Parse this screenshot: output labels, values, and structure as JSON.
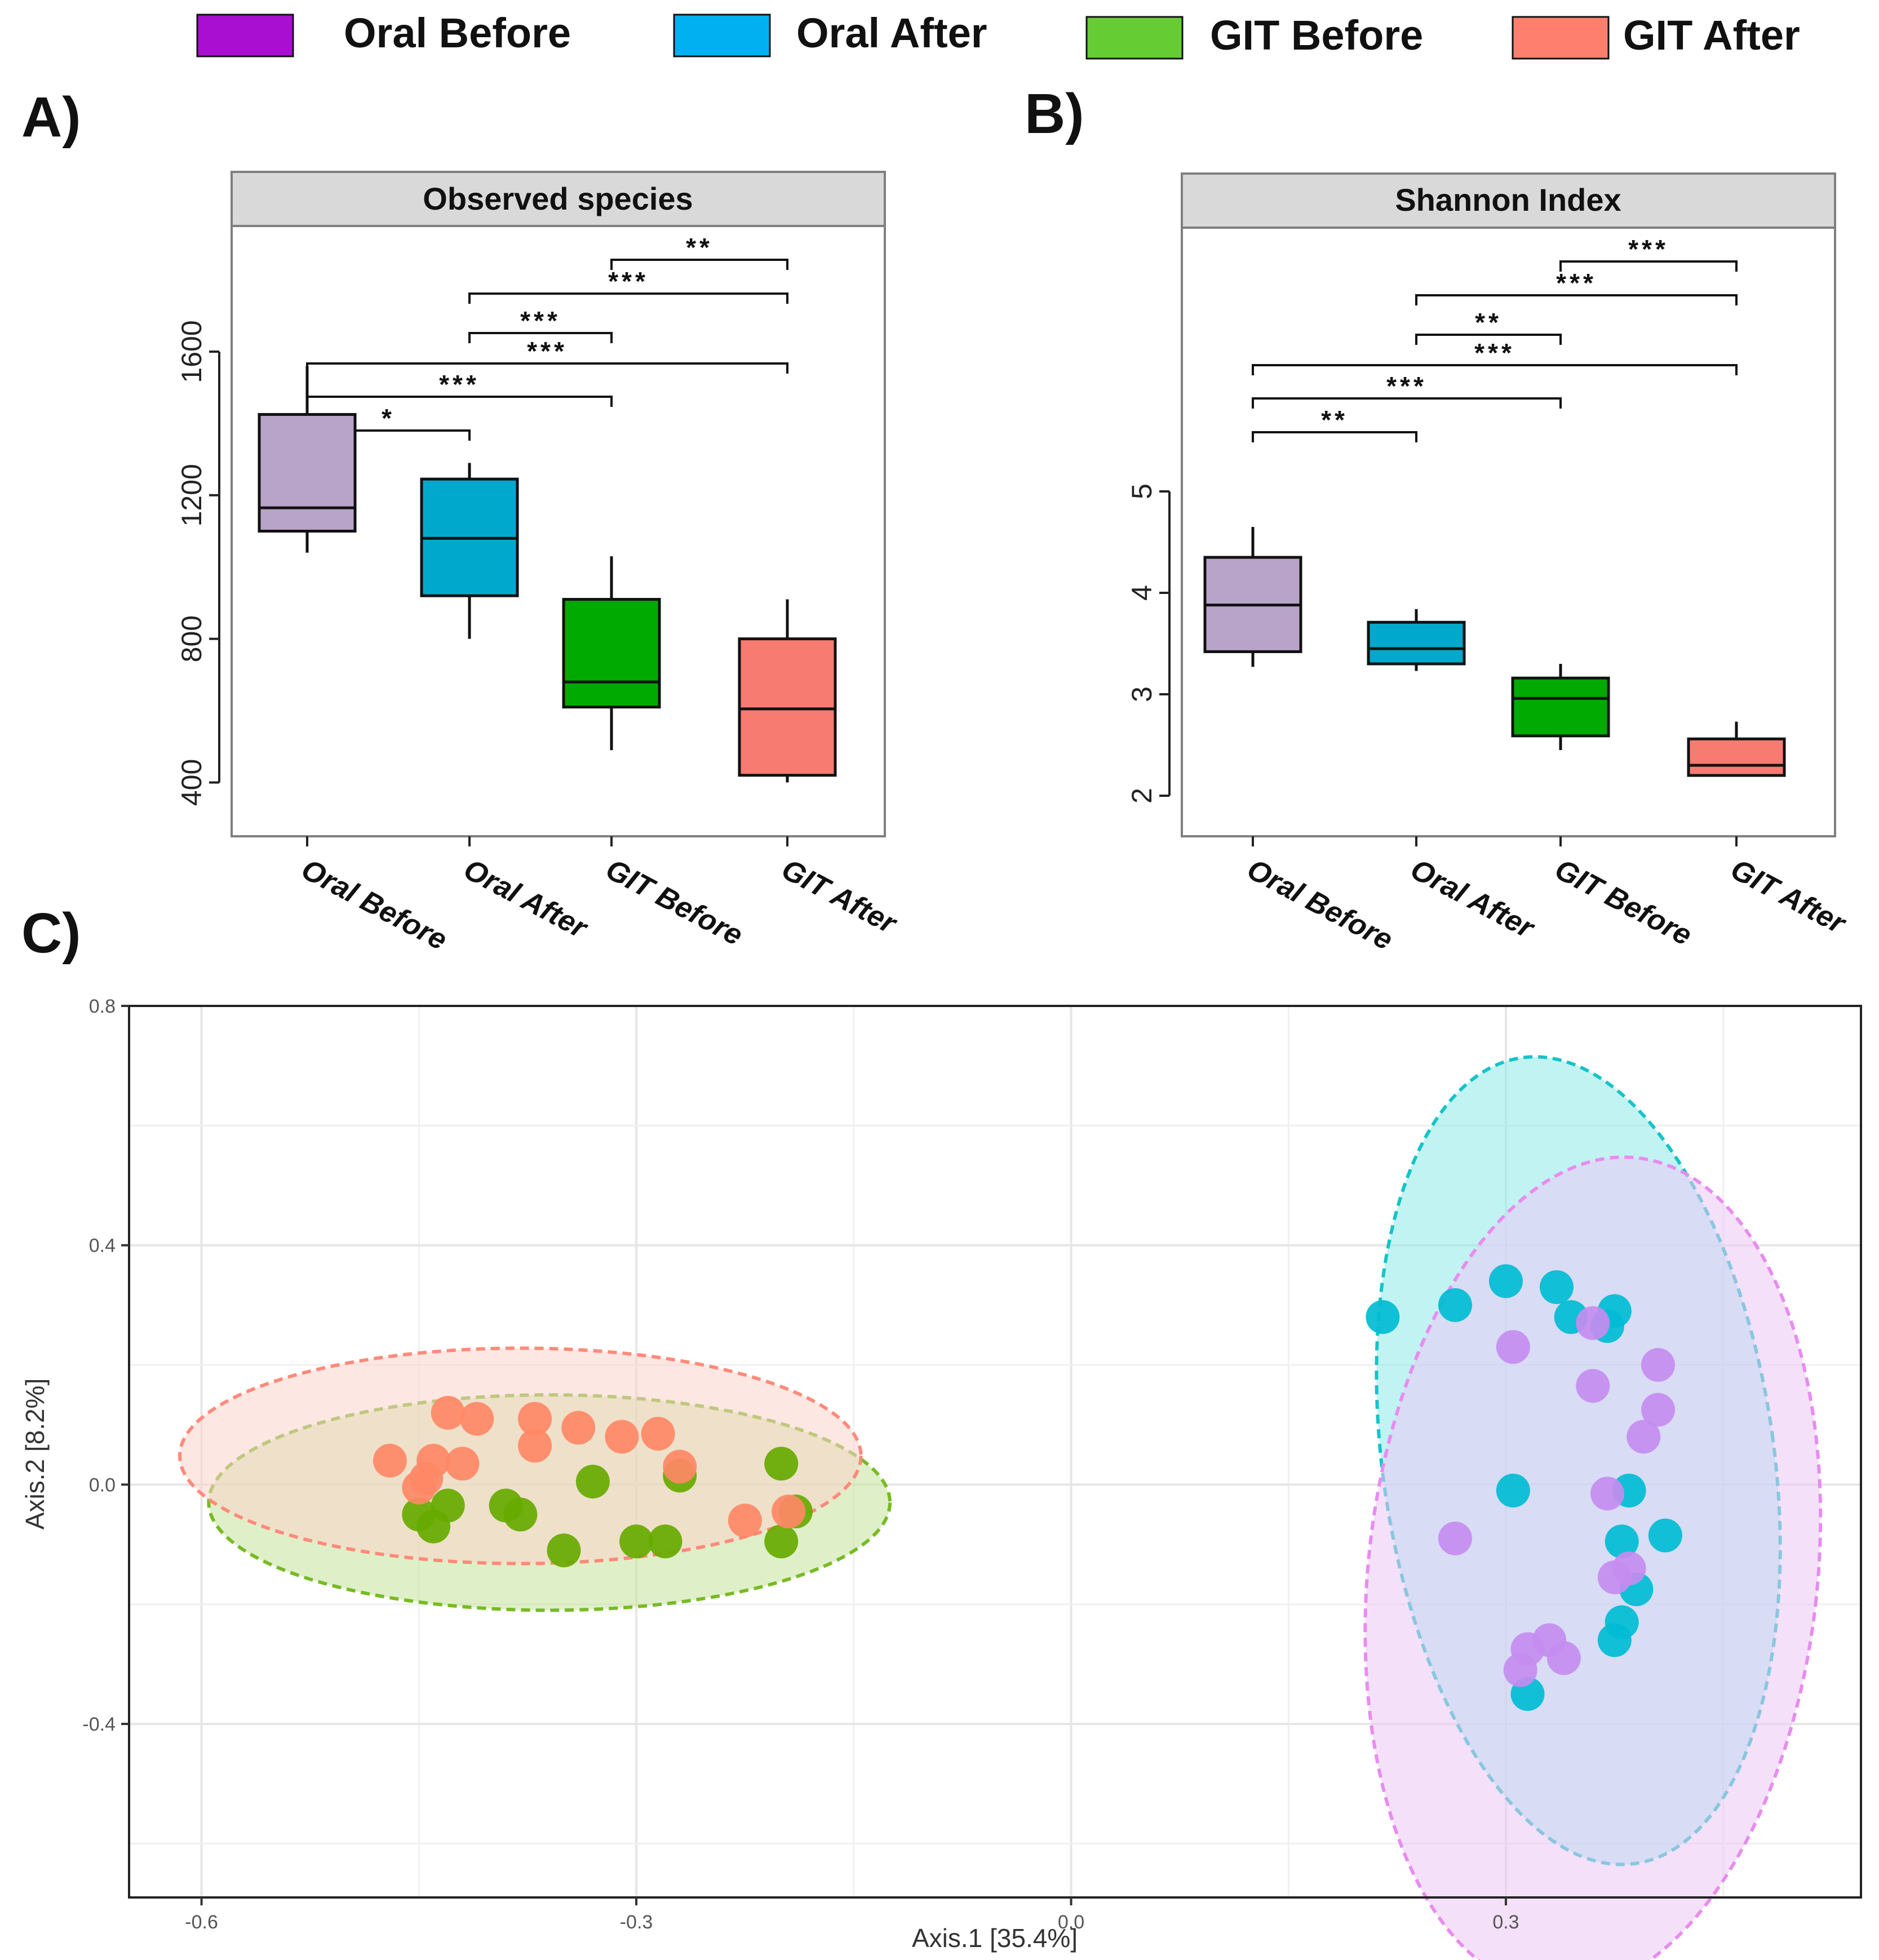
{
  "legend": {
    "entries": [
      {
        "label": "Oral Before",
        "color": "#a90fd0"
      },
      {
        "label": "Oral After",
        "color": "#00b0f0"
      },
      {
        "label": "GIT Before",
        "color": "#66cc33"
      },
      {
        "label": "GIT After",
        "color": "#ff7f6e"
      }
    ]
  },
  "chart_data": [
    {
      "panel": "A)",
      "type": "box",
      "title": "Observed species",
      "categories": [
        "Oral Before",
        "Oral After",
        "GIT Before",
        "GIT After"
      ],
      "yticks": [
        400,
        800,
        1200,
        1600
      ],
      "ylim": [
        250,
        1950
      ],
      "boxes": [
        {
          "min": 1040,
          "q1": 1100,
          "median": 1165,
          "q3": 1425,
          "max": 1560,
          "fill": "#b8a3c9"
        },
        {
          "min": 800,
          "q1": 920,
          "median": 1080,
          "q3": 1245,
          "max": 1290,
          "fill": "#00a9cc"
        },
        {
          "min": 490,
          "q1": 610,
          "median": 680,
          "q3": 910,
          "max": 1030,
          "fill": "#00aa00"
        },
        {
          "min": 400,
          "q1": 420,
          "median": 605,
          "q3": 800,
          "max": 910,
          "fill": "#f87b72"
        }
      ],
      "brackets": [
        {
          "from": 3,
          "to": 4,
          "label": "**"
        },
        {
          "from": 2,
          "to": 4,
          "label": "***"
        },
        {
          "from": 2,
          "to": 3,
          "label": "***"
        },
        {
          "from": 1,
          "to": 4,
          "label": "***"
        },
        {
          "from": 1,
          "to": 3,
          "label": "***"
        },
        {
          "from": 1,
          "to": 2,
          "label": "*"
        }
      ]
    },
    {
      "panel": "B)",
      "type": "box",
      "title": "Shannon Index",
      "categories": [
        "Oral Before",
        "Oral After",
        "GIT Before",
        "GIT After"
      ],
      "yticks": [
        2,
        3,
        4,
        5
      ],
      "ylim": [
        1.6,
        7.6
      ],
      "boxes": [
        {
          "min": 3.27,
          "q1": 3.42,
          "median": 3.88,
          "q3": 4.35,
          "max": 4.65,
          "fill": "#b8a3c9"
        },
        {
          "min": 3.23,
          "q1": 3.3,
          "median": 3.45,
          "q3": 3.71,
          "max": 3.84,
          "fill": "#00a9cc"
        },
        {
          "min": 2.45,
          "q1": 2.59,
          "median": 2.96,
          "q3": 3.16,
          "max": 3.3,
          "fill": "#00aa00"
        },
        {
          "min": 2.2,
          "q1": 2.2,
          "median": 2.3,
          "q3": 2.56,
          "max": 2.73,
          "fill": "#f87b72"
        }
      ],
      "brackets": [
        {
          "from": 3,
          "to": 4,
          "label": "***"
        },
        {
          "from": 2,
          "to": 4,
          "label": "***"
        },
        {
          "from": 2,
          "to": 3,
          "label": "**"
        },
        {
          "from": 1,
          "to": 4,
          "label": "***"
        },
        {
          "from": 1,
          "to": 3,
          "label": "***"
        },
        {
          "from": 1,
          "to": 2,
          "label": "**"
        }
      ]
    },
    {
      "panel": "C)",
      "type": "scatter",
      "xlabel": "Axis.1   [35.4%]",
      "ylabel": "Axis.2   [8.2%]",
      "xticks": [
        -0.6,
        -0.3,
        0.0,
        0.3
      ],
      "xtick_labels": [
        "-0.6",
        "-0.3",
        "0.0",
        "0.3"
      ],
      "yticks": [
        -0.4,
        0.0,
        0.4,
        0.8
      ],
      "ytick_labels": [
        "-0.4",
        "0.0",
        "0.4",
        "0.8"
      ],
      "xlim": [
        -0.65,
        0.545
      ],
      "ylim": [
        -0.69,
        0.8
      ],
      "series": [
        {
          "name": "GIT Before",
          "color": "#66aa00",
          "fill": "#c5e39a",
          "stroke": "#77bb22",
          "ellipse": {
            "cx": -0.36,
            "cy": -0.03,
            "rx": 0.235,
            "ry": 0.18,
            "angle": 0
          },
          "points": [
            [
              -0.45,
              -0.05
            ],
            [
              -0.44,
              -0.07
            ],
            [
              -0.43,
              -0.035
            ],
            [
              -0.39,
              -0.035
            ],
            [
              -0.38,
              -0.05
            ],
            [
              -0.35,
              -0.11
            ],
            [
              -0.33,
              0.005
            ],
            [
              -0.3,
              -0.095
            ],
            [
              -0.28,
              -0.095
            ],
            [
              -0.27,
              0.015
            ],
            [
              -0.2,
              0.035
            ],
            [
              -0.19,
              -0.045
            ],
            [
              -0.2,
              -0.095
            ]
          ]
        },
        {
          "name": "GIT After",
          "color": "#ff8866",
          "fill": "#fcd3cc",
          "stroke": "#ff8a7a",
          "ellipse": {
            "cx": -0.38,
            "cy": 0.048,
            "rx": 0.235,
            "ry": 0.18,
            "angle": 0
          },
          "points": [
            [
              -0.47,
              0.04
            ],
            [
              -0.43,
              0.12
            ],
            [
              -0.41,
              0.11
            ],
            [
              -0.37,
              0.11
            ],
            [
              -0.34,
              0.095
            ],
            [
              -0.44,
              0.04
            ],
            [
              -0.42,
              0.035
            ],
            [
              -0.445,
              0.01
            ],
            [
              -0.45,
              -0.005
            ],
            [
              -0.37,
              0.065
            ],
            [
              -0.31,
              0.08
            ],
            [
              -0.285,
              0.085
            ],
            [
              -0.27,
              0.03
            ],
            [
              -0.225,
              -0.06
            ],
            [
              -0.195,
              -0.045
            ]
          ]
        },
        {
          "name": "Oral After",
          "color": "#00bcd4",
          "fill": "#8feaea",
          "stroke": "#14c4c8",
          "ellipse": {
            "cx": 0.35,
            "cy": 0.04,
            "rx": 0.135,
            "ry": 0.68,
            "angle": -8
          },
          "points": [
            [
              0.215,
              0.28
            ],
            [
              0.265,
              0.3
            ],
            [
              0.3,
              0.34
            ],
            [
              0.335,
              0.33
            ],
            [
              0.345,
              0.28
            ],
            [
              0.37,
              0.265
            ],
            [
              0.375,
              0.29
            ],
            [
              0.305,
              -0.01
            ],
            [
              0.385,
              -0.01
            ],
            [
              0.38,
              -0.095
            ],
            [
              0.41,
              -0.085
            ],
            [
              0.39,
              -0.175
            ],
            [
              0.38,
              -0.23
            ],
            [
              0.375,
              -0.26
            ],
            [
              0.315,
              -0.35
            ]
          ]
        },
        {
          "name": "Oral Before",
          "color": "#c58cf0",
          "fill": "#ebc8f4",
          "stroke": "#e88cf0",
          "ellipse": {
            "cx": 0.36,
            "cy": -0.15,
            "rx": 0.155,
            "ry": 0.7,
            "angle": 6
          },
          "points": [
            [
              0.36,
              0.27
            ],
            [
              0.305,
              0.23
            ],
            [
              0.36,
              0.165
            ],
            [
              0.405,
              0.2
            ],
            [
              0.405,
              0.125
            ],
            [
              0.395,
              0.08
            ],
            [
              0.37,
              -0.015
            ],
            [
              0.265,
              -0.09
            ],
            [
              0.375,
              -0.155
            ],
            [
              0.385,
              -0.14
            ],
            [
              0.31,
              -0.31
            ],
            [
              0.315,
              -0.275
            ],
            [
              0.33,
              -0.26
            ],
            [
              0.34,
              -0.29
            ]
          ]
        }
      ]
    }
  ]
}
